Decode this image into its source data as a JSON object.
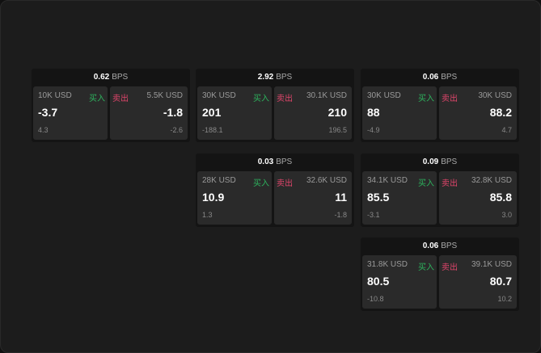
{
  "labels": {
    "buy": "买入",
    "sell": "卖出",
    "unit": "BPS"
  },
  "colors": {
    "buy": "#2db35d",
    "sell": "#e0456b"
  },
  "widgets": [
    {
      "spread": "0.62",
      "buy_size": "10K USD",
      "buy_price": "-3.7",
      "buy_change": "4.3",
      "sell_size": "5.5K USD",
      "sell_price": "-1.8",
      "sell_change": "-2.6"
    },
    {
      "spread": "2.92",
      "buy_size": "30K USD",
      "buy_price": "201",
      "buy_change": "-188.1",
      "sell_size": "30.1K USD",
      "sell_price": "210",
      "sell_change": "196.5"
    },
    {
      "spread": "0.06",
      "buy_size": "30K USD",
      "buy_price": "88",
      "buy_change": "-4.9",
      "sell_size": "30K USD",
      "sell_price": "88.2",
      "sell_change": "4.7"
    },
    {
      "spread": "0.03",
      "buy_size": "28K USD",
      "buy_price": "10.9",
      "buy_change": "1.3",
      "sell_size": "32.6K USD",
      "sell_price": "11",
      "sell_change": "-1.8"
    },
    {
      "spread": "0.09",
      "buy_size": "34.1K USD",
      "buy_price": "85.5",
      "buy_change": "-3.1",
      "sell_size": "32.8K USD",
      "sell_price": "85.8",
      "sell_change": "3.0"
    },
    {
      "spread": "0.06",
      "buy_size": "31.8K USD",
      "buy_price": "80.5",
      "buy_change": "-10.8",
      "sell_size": "39.1K USD",
      "sell_price": "80.7",
      "sell_change": "10.2"
    }
  ]
}
